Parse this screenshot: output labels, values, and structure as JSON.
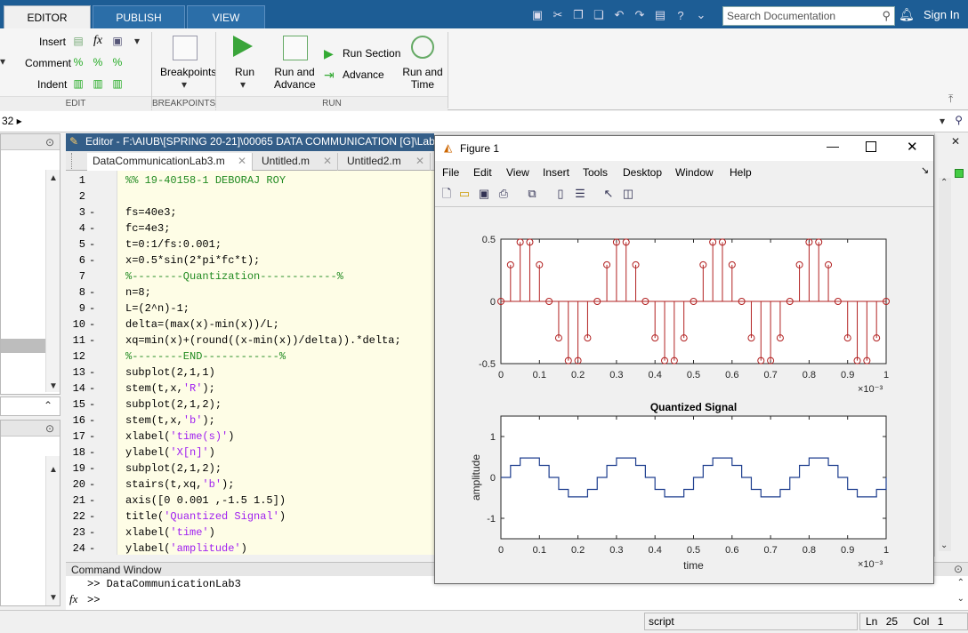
{
  "ribbon_tabs": [
    {
      "label": "EDITOR"
    },
    {
      "label": "PUBLISH"
    },
    {
      "label": "VIEW"
    }
  ],
  "search": {
    "placeholder": "Search Documentation"
  },
  "signin": "Sign In",
  "ribbon": {
    "edit": {
      "insert": "Insert",
      "comment": "Comment",
      "indent": "Indent",
      "fx": "fx",
      "section": "EDIT"
    },
    "breakpoints": {
      "label": "Breakpoints",
      "section": "BREAKPOINTS"
    },
    "run": {
      "run": "Run",
      "run_and_advance": "Run and Advance",
      "run_section": "Run Section",
      "advance": "Advance",
      "run_and_time": "Run and Time",
      "section": "RUN"
    }
  },
  "address": {
    "text": "32 ▸"
  },
  "editor": {
    "title": "Editor - F:\\AIUB\\[SPRING 20-21]\\00065 DATA COMMUNICATION [G]\\Lab\\",
    "tabs": [
      {
        "label": "DataCommunicationLab3.m"
      },
      {
        "label": "Untitled.m"
      },
      {
        "label": "Untitled2.m"
      }
    ],
    "lines": [
      {
        "n": "1",
        "dash": "",
        "code": "%% 19-40158-1 DEBORAJ ROY",
        "style": "kw-g"
      },
      {
        "n": "2",
        "dash": "",
        "code": "",
        "style": ""
      },
      {
        "n": "3",
        "dash": "-",
        "code": "fs=40e3;",
        "style": ""
      },
      {
        "n": "4",
        "dash": "-",
        "code": "fc=4e3;",
        "style": ""
      },
      {
        "n": "5",
        "dash": "-",
        "code": "t=0:1/fs:0.001;",
        "style": ""
      },
      {
        "n": "6",
        "dash": "-",
        "code": "x=0.5*sin(2*pi*fc*t);",
        "style": ""
      },
      {
        "n": "7",
        "dash": "",
        "code": "%--------Quantization------------%",
        "style": "kw-g"
      },
      {
        "n": "8",
        "dash": "-",
        "code": "n=8;",
        "style": ""
      },
      {
        "n": "9",
        "dash": "-",
        "code": "L=(2^n)-1;",
        "style": ""
      },
      {
        "n": "10",
        "dash": "-",
        "code": "delta=(max(x)-min(x))/L;",
        "style": ""
      },
      {
        "n": "11",
        "dash": "-",
        "code": "xq=min(x)+(round((x-min(x))/delta)).*delta;",
        "style": ""
      },
      {
        "n": "12",
        "dash": "",
        "code": "%--------END------------%",
        "style": "kw-g"
      },
      {
        "n": "13",
        "dash": "-",
        "code": "subplot(2,1,1)",
        "style": ""
      },
      {
        "n": "14",
        "dash": "-",
        "code": "stem(t,x,'R');",
        "style": ""
      },
      {
        "n": "15",
        "dash": "-",
        "code": "subplot(2,1,2);",
        "style": ""
      },
      {
        "n": "16",
        "dash": "-",
        "code": "stem(t,x,'b');",
        "style": ""
      },
      {
        "n": "17",
        "dash": "-",
        "code": "xlabel('time(s)')",
        "style": ""
      },
      {
        "n": "18",
        "dash": "-",
        "code": "ylabel('X[n]')",
        "style": ""
      },
      {
        "n": "19",
        "dash": "-",
        "code": "subplot(2,1,2);",
        "style": ""
      },
      {
        "n": "20",
        "dash": "-",
        "code": "stairs(t,xq,'b');",
        "style": ""
      },
      {
        "n": "21",
        "dash": "-",
        "code": "axis([0 0.001 ,-1.5 1.5])",
        "style": ""
      },
      {
        "n": "22",
        "dash": "-",
        "code": "title('Quantized Signal')",
        "style": ""
      },
      {
        "n": "23",
        "dash": "-",
        "code": "xlabel('time')",
        "style": ""
      },
      {
        "n": "24",
        "dash": "-",
        "code": "ylabel('amplitude')",
        "style": ""
      }
    ]
  },
  "command_window": {
    "title": "Command Window",
    "history": ">> DataCommunicationLab3",
    "prompt_symbol": "fx",
    "prompt": ">>"
  },
  "status": {
    "mode": "script",
    "ln_label": "Ln",
    "ln": "25",
    "col_label": "Col",
    "col": "1"
  },
  "figure": {
    "title": "Figure 1",
    "menu": [
      "File",
      "Edit",
      "View",
      "Insert",
      "Tools",
      "Desktop",
      "Window",
      "Help"
    ]
  },
  "chart_data": [
    {
      "type": "stem",
      "color": "#b22222",
      "x": [
        0,
        0.025,
        0.05,
        0.075,
        0.1,
        0.125,
        0.15,
        0.175,
        0.2,
        0.225,
        0.25,
        0.275,
        0.3,
        0.325,
        0.35,
        0.375,
        0.4,
        0.425,
        0.45,
        0.475,
        0.5,
        0.525,
        0.55,
        0.575,
        0.6,
        0.625,
        0.65,
        0.675,
        0.7,
        0.725,
        0.75,
        0.775,
        0.8,
        0.825,
        0.85,
        0.875,
        0.9,
        0.925,
        0.95,
        0.975,
        1.0
      ],
      "y": [
        0,
        0.294,
        0.476,
        0.476,
        0.294,
        0,
        -0.294,
        -0.476,
        -0.476,
        -0.294,
        0,
        0.294,
        0.476,
        0.476,
        0.294,
        0,
        -0.294,
        -0.476,
        -0.476,
        -0.294,
        0,
        0.294,
        0.476,
        0.476,
        0.294,
        0,
        -0.294,
        -0.476,
        -0.476,
        -0.294,
        0,
        0.294,
        0.476,
        0.476,
        0.294,
        0,
        -0.294,
        -0.476,
        -0.476,
        -0.294,
        0
      ],
      "xlim": [
        0,
        1
      ],
      "ylim": [
        -0.5,
        0.5
      ],
      "xticks": [
        "0",
        "0.1",
        "0.2",
        "0.3",
        "0.4",
        "0.5",
        "0.6",
        "0.7",
        "0.8",
        "0.9",
        "1"
      ],
      "yticks": [
        "0.5",
        "0",
        "-0.5"
      ],
      "xscale": "×10⁻³"
    },
    {
      "type": "stairs",
      "color": "#1f3f8f",
      "title": "Quantized Signal",
      "xlabel": "time",
      "ylabel": "amplitude",
      "x": [
        0,
        0.025,
        0.05,
        0.075,
        0.1,
        0.125,
        0.15,
        0.175,
        0.2,
        0.225,
        0.25,
        0.275,
        0.3,
        0.325,
        0.35,
        0.375,
        0.4,
        0.425,
        0.45,
        0.475,
        0.5,
        0.525,
        0.55,
        0.575,
        0.6,
        0.625,
        0.65,
        0.675,
        0.7,
        0.725,
        0.75,
        0.775,
        0.8,
        0.825,
        0.85,
        0.875,
        0.9,
        0.925,
        0.95,
        0.975,
        1.0
      ],
      "y": [
        0,
        0.294,
        0.476,
        0.476,
        0.294,
        0,
        -0.294,
        -0.476,
        -0.476,
        -0.294,
        0,
        0.294,
        0.476,
        0.476,
        0.294,
        0,
        -0.294,
        -0.476,
        -0.476,
        -0.294,
        0,
        0.294,
        0.476,
        0.476,
        0.294,
        0,
        -0.294,
        -0.476,
        -0.476,
        -0.294,
        0,
        0.294,
        0.476,
        0.476,
        0.294,
        0,
        -0.294,
        -0.476,
        -0.476,
        -0.294,
        0
      ],
      "xlim": [
        0,
        1
      ],
      "ylim": [
        -1.5,
        1.5
      ],
      "xticks": [
        "0",
        "0.1",
        "0.2",
        "0.3",
        "0.4",
        "0.5",
        "0.6",
        "0.7",
        "0.8",
        "0.9",
        "1"
      ],
      "yticks": [
        "1",
        "0",
        "-1"
      ],
      "xscale": "×10⁻³"
    }
  ]
}
